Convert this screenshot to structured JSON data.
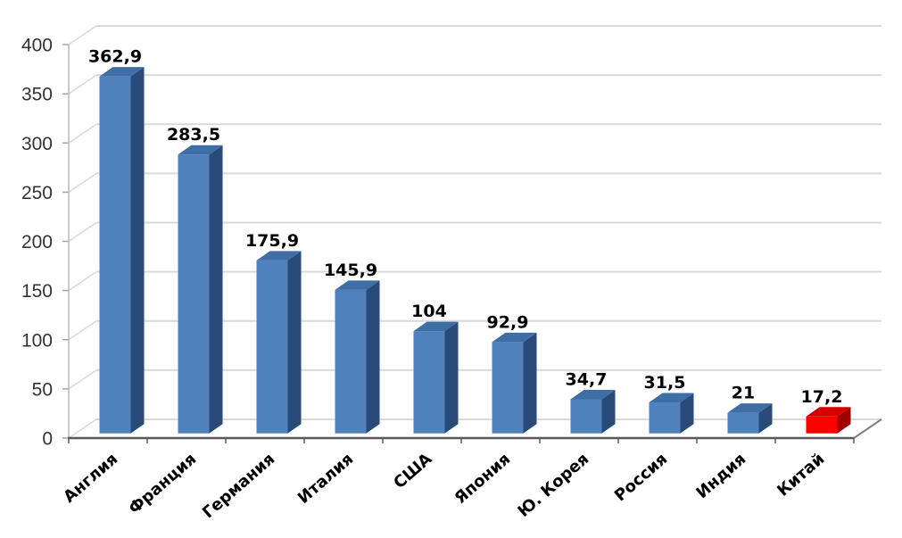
{
  "chart_data": {
    "type": "bar",
    "style": "3d-column",
    "title": "",
    "xlabel": "",
    "ylabel": "",
    "categories": [
      "Англия",
      "Франция",
      "Германия",
      "Италия",
      "США",
      "Япония",
      "Ю. Корея",
      "Россия",
      "Индия",
      "Китай"
    ],
    "values": [
      362.9,
      283.5,
      175.9,
      145.9,
      104,
      92.9,
      34.7,
      31.5,
      21,
      17.2
    ],
    "value_labels": [
      "362,9",
      "283,5",
      "175,9",
      "145,9",
      "104",
      "92,9",
      "34,7",
      "31,5",
      "21",
      "17,2"
    ],
    "highlight_index": 9,
    "ylim": [
      0,
      400
    ],
    "ytick_step": 50,
    "ytick_labels": [
      "0",
      "50",
      "100",
      "150",
      "200",
      "250",
      "300",
      "350",
      "400"
    ],
    "grid": true,
    "legend": false,
    "colors": {
      "bar_front": "#4F81BD",
      "bar_top": "#3F6DA6",
      "bar_side": "#2A4B78",
      "highlight_front": "#FE0000",
      "highlight_top": "#D40000",
      "highlight_side": "#9E0000",
      "gridline": "#D9D9D9",
      "floor_axis": "#595959",
      "right_edge": "#808080",
      "wall_edge": "#B8B8B8",
      "tick_mark": "#A6A6A6",
      "ytick_label": "#333333",
      "value_label": "#000000",
      "category_label": "#000000",
      "background": "#FFFFFF"
    }
  }
}
